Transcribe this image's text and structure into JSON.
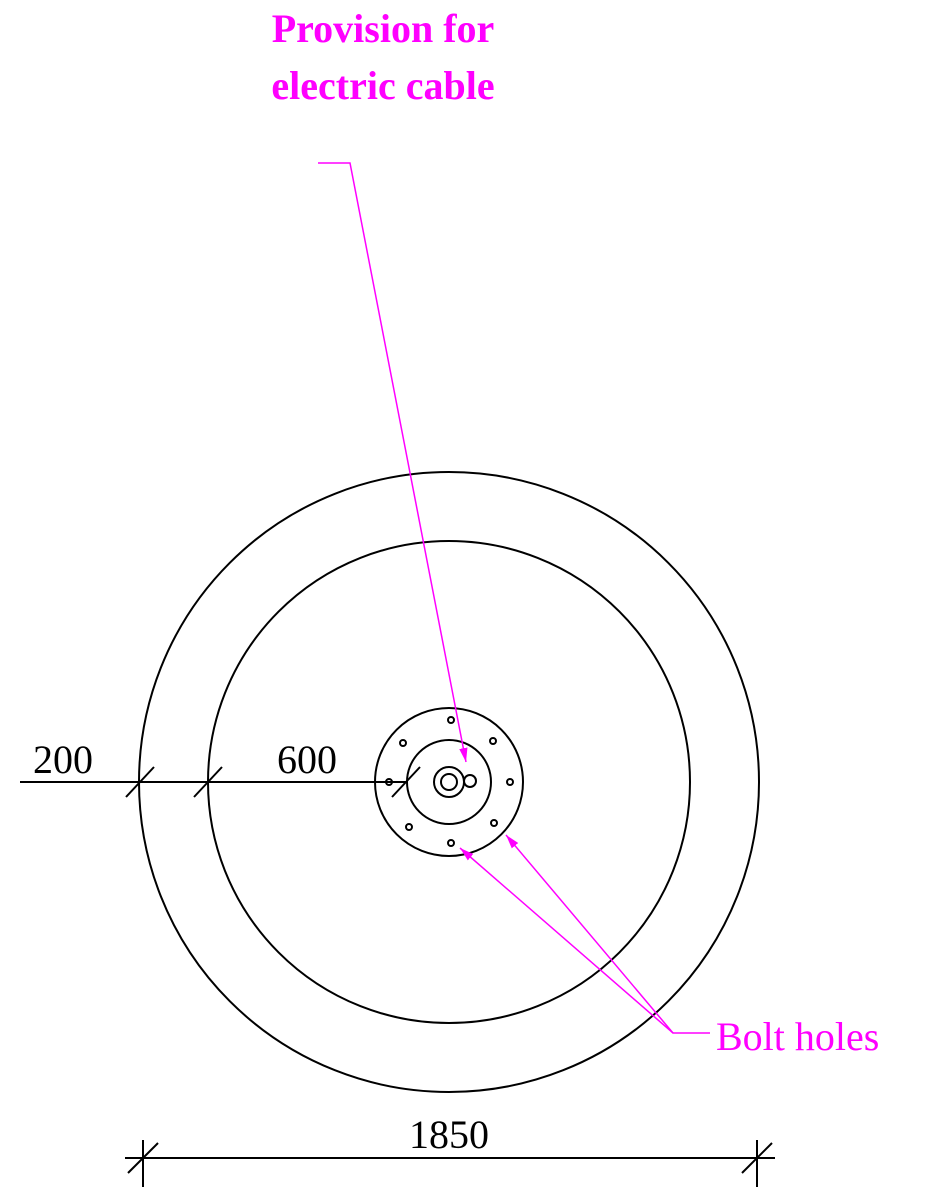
{
  "callouts": {
    "cable": {
      "lines": [
        "Provision for",
        "electric cable"
      ]
    },
    "bolts": {
      "label": "Bolt holes"
    }
  },
  "dimensions": {
    "wall": 200,
    "inner": 600,
    "diameter": 1850
  }
}
